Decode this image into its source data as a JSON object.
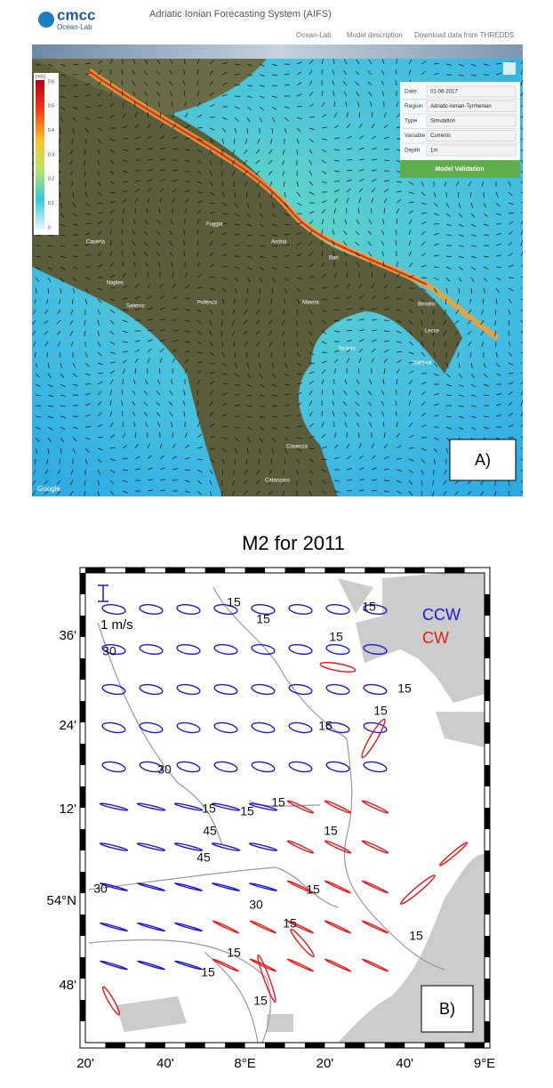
{
  "header": {
    "logo": "cmcc",
    "logo_sub": "Ocean-Lab",
    "title": "Adriatic Ionian Forecasting System (AIFS)",
    "nav": [
      "Ocean-Lab",
      "Model description",
      "Download data from THREDDS"
    ]
  },
  "map_panel": {
    "colorbar": {
      "unit": "[m/s]",
      "ticks": [
        0.6,
        0.5,
        0.4,
        0.3,
        0.2,
        0.1,
        0
      ]
    },
    "controls": [
      {
        "label": "Date",
        "value": "01-06-2017"
      },
      {
        "label": "Region",
        "value": "Adriatic-Ionian-Tyrrhenian"
      },
      {
        "label": "Type",
        "value": "Simulation"
      },
      {
        "label": "Variable",
        "value": "Currents"
      },
      {
        "label": "Depth",
        "value": "1m"
      }
    ],
    "button": "Model Validation",
    "place_names": [
      "Naples",
      "Caserta",
      "Foggia",
      "Andria",
      "Bari",
      "Potenza",
      "Matera",
      "Taranto",
      "Brindisi",
      "Lecce",
      "Gallipoli",
      "Cosenza",
      "Catanzaro",
      "Salerno"
    ],
    "attribution": "Google",
    "panel_label": "A)"
  },
  "tidal_panel": {
    "title": "M2 for 2011",
    "scale_label": "1 m/s",
    "legend": [
      "CCW",
      "CW"
    ],
    "yticks": [
      "36'",
      "24'",
      "12'",
      "54°N",
      "48'"
    ],
    "xticks": [
      "20'",
      "40'",
      "8°E",
      "20'",
      "40'",
      "9°E"
    ],
    "contour_labels": [
      "15",
      "15",
      "15",
      "15",
      "30",
      "15",
      "15",
      "15",
      "30",
      "15",
      "15",
      "15",
      "45",
      "45",
      "15",
      "15",
      "30",
      "15",
      "15",
      "15",
      "15",
      "15",
      "30"
    ],
    "panel_label": "B)"
  }
}
